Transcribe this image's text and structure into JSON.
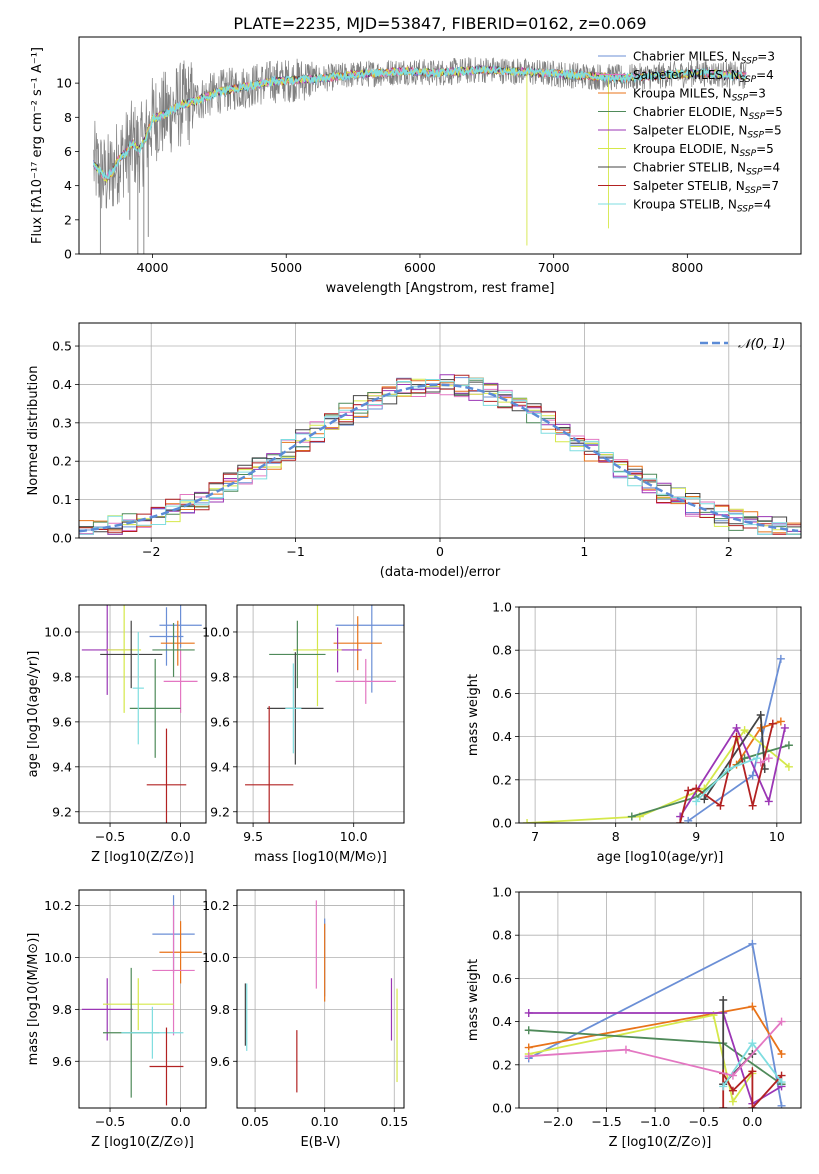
{
  "title": "PLATE=2235, MJD=53847, FIBERID=0162, z=0.069",
  "colors": [
    "#6b8fd6",
    "#e377c2",
    "#e8731a",
    "#4f8a5a",
    "#9b36b5",
    "#d5e84a",
    "#444444",
    "#b22222",
    "#7fdde0"
  ],
  "chart_data": [
    {
      "type": "line",
      "name": "spectrum",
      "ylabel": "Flux [fλ10⁻¹⁷ erg cm⁻² s⁻¹ A⁻¹]",
      "xlabel": "wavelength [Angstrom, rest frame]",
      "xlim": [
        3450,
        8850
      ],
      "ylim": [
        0,
        12.7
      ],
      "xticks": [
        4000,
        5000,
        6000,
        7000,
        8000
      ],
      "yticks": [
        0,
        2,
        4,
        6,
        8,
        10
      ],
      "continuum": {
        "x": [
          3560,
          3600,
          3650,
          3700,
          3750,
          3800,
          3850,
          3900,
          3950,
          4000,
          4100,
          4200,
          4300,
          4400,
          4500,
          4700,
          4900,
          5100,
          5300,
          5500,
          5700,
          5900,
          6100,
          6300,
          6500,
          6700,
          6900,
          7100,
          7300,
          7500,
          7700,
          7900,
          8100,
          8300,
          8450
        ],
        "y": [
          5.3,
          4.9,
          4.4,
          4.8,
          5.6,
          5.9,
          6.5,
          6.1,
          6.8,
          7.9,
          8.2,
          8.7,
          8.9,
          9.2,
          9.5,
          9.8,
          10.1,
          10.2,
          10.3,
          10.5,
          10.6,
          10.7,
          10.6,
          10.7,
          10.8,
          10.7,
          10.6,
          10.5,
          10.4,
          10.3,
          10.4,
          10.5,
          10.6,
          10.5,
          10.4
        ]
      },
      "legend": [
        "Chabrier MILES, N_SSP=3",
        "Salpeter MILES, N_SSP=4",
        "Kroupa MILES, N_SSP=3",
        "Chabrier ELODIE, N_SSP=5",
        "Salpeter ELODIE, N_SSP=5",
        "Kroupa ELODIE, N_SSP=5",
        "Chabrier STELIB, N_SSP=4",
        "Salpeter STELIB, N_SSP=7",
        "Kroupa STELIB, N_SSP=4"
      ]
    },
    {
      "type": "line",
      "name": "residual-histogram",
      "xlabel": "(data-model)/error",
      "ylabel": "Normed distribution",
      "xlim": [
        -2.5,
        2.5
      ],
      "ylim": [
        0,
        0.56
      ],
      "xticks": [
        -2,
        -1,
        0,
        1,
        2
      ],
      "yticks": [
        0.0,
        0.1,
        0.2,
        0.3,
        0.4,
        0.5
      ],
      "legend": "𝒩(0, 1)",
      "bin_width": 0.1,
      "bin_start": -2.5
    },
    {
      "type": "scatter",
      "name": "age-vs-Z",
      "xlabel": "Z [log10(Z/Z⊙)]",
      "ylabel": "age  [log10(age/yr)]",
      "xlim": [
        -0.72,
        0.18
      ],
      "ylim": [
        9.15,
        10.12
      ],
      "xticks": [
        -0.5,
        0.0
      ],
      "yticks": [
        9.2,
        9.4,
        9.6,
        9.8,
        10.0
      ],
      "points": [
        {
          "x": 0.0,
          "y": 10.03,
          "xe": 0.15,
          "ye": 0.1,
          "c": 0
        },
        {
          "x": -0.1,
          "y": 9.98,
          "xe": 0.12,
          "ye": 0.13,
          "c": 0
        },
        {
          "x": -0.02,
          "y": 9.95,
          "xe": 0.12,
          "ye": 0.1,
          "c": 2
        },
        {
          "x": 0.0,
          "y": 9.78,
          "xe": 0.12,
          "ye": 0.14,
          "c": 1
        },
        {
          "x": -0.05,
          "y": 9.92,
          "xe": 0.15,
          "ye": 0.12,
          "c": 3
        },
        {
          "x": -0.52,
          "y": 9.92,
          "xe": 0.18,
          "ye": 0.2,
          "c": 4
        },
        {
          "x": -0.4,
          "y": 9.92,
          "xe": 0.12,
          "ye": 0.28,
          "c": 5
        },
        {
          "x": -0.35,
          "y": 9.9,
          "xe": 0.22,
          "ye": 0.15,
          "c": 6
        },
        {
          "x": -0.18,
          "y": 9.66,
          "xe": 0.18,
          "ye": 0.22,
          "c": 3
        },
        {
          "x": -0.3,
          "y": 9.75,
          "xe": 0.04,
          "ye": 0.25,
          "c": 8
        },
        {
          "x": -0.1,
          "y": 9.32,
          "xe": 0.14,
          "ye": 0.25,
          "c": 7
        }
      ]
    },
    {
      "type": "scatter",
      "name": "age-vs-mass",
      "xlabel": "mass [log10(M/M⊙)]",
      "ylabel": "",
      "xlim": [
        9.42,
        10.25
      ],
      "ylim": [
        9.15,
        10.12
      ],
      "xticks": [
        9.5,
        10.0
      ],
      "yticks": [
        9.2,
        9.4,
        9.6,
        9.8,
        10.0
      ],
      "points": [
        {
          "x": 10.09,
          "y": 10.03,
          "xe": 0.18,
          "ye": 0.3,
          "c": 0
        },
        {
          "x": 10.02,
          "y": 9.95,
          "xe": 0.12,
          "ye": 0.12,
          "c": 2
        },
        {
          "x": 9.92,
          "y": 9.92,
          "xe": 0.12,
          "ye": 0.1,
          "c": 4
        },
        {
          "x": 9.82,
          "y": 9.92,
          "xe": 0.12,
          "ye": 0.25,
          "c": 5
        },
        {
          "x": 9.72,
          "y": 9.9,
          "xe": 0.14,
          "ye": 0.15,
          "c": 3
        },
        {
          "x": 9.71,
          "y": 9.66,
          "xe": 0.14,
          "ye": 0.25,
          "c": 6
        },
        {
          "x": 9.7,
          "y": 9.66,
          "xe": 0.04,
          "ye": 0.2,
          "c": 8
        },
        {
          "x": 10.06,
          "y": 9.78,
          "xe": 0.15,
          "ye": 0.1,
          "c": 1
        },
        {
          "x": 9.58,
          "y": 9.32,
          "xe": 0.12,
          "ye": 0.35,
          "c": 7
        }
      ]
    },
    {
      "type": "line",
      "name": "weight-vs-age",
      "xlabel": "age  [log10(age/yr)]",
      "ylabel": "mass weight",
      "xlim": [
        6.8,
        10.3
      ],
      "ylim": [
        0.0,
        1.0
      ],
      "xticks": [
        7,
        8,
        9,
        10
      ],
      "yticks": [
        0.0,
        0.2,
        0.4,
        0.6,
        0.8,
        1.0
      ],
      "series": [
        {
          "c": 0,
          "x": [
            8.9,
            9.7,
            10.05
          ],
          "y": [
            0.01,
            0.22,
            0.76
          ]
        },
        {
          "c": 2,
          "x": [
            9.5,
            9.8,
            10.05
          ],
          "y": [
            0.27,
            0.44,
            0.47
          ]
        },
        {
          "c": 5,
          "x": [
            6.9,
            8.3,
            9.1,
            9.6,
            10.15
          ],
          "y": [
            0.0,
            0.03,
            0.16,
            0.43,
            0.26
          ]
        },
        {
          "c": 3,
          "x": [
            8.2,
            9.0,
            9.6,
            10.15
          ],
          "y": [
            0.03,
            0.12,
            0.3,
            0.36
          ]
        },
        {
          "c": 4,
          "x": [
            8.8,
            9.5,
            9.9,
            10.1
          ],
          "y": [
            0.03,
            0.44,
            0.1,
            0.44
          ]
        },
        {
          "c": 6,
          "x": [
            9.1,
            9.8,
            9.85
          ],
          "y": [
            0.11,
            0.5,
            0.25
          ]
        },
        {
          "c": 7,
          "x": [
            8.8,
            8.9,
            9.0,
            9.3,
            9.5,
            9.7,
            9.95
          ],
          "y": [
            0.0,
            0.15,
            0.16,
            0.08,
            0.4,
            0.08,
            0.46
          ]
        },
        {
          "c": 8,
          "x": [
            9.0,
            9.4,
            9.75
          ],
          "y": [
            0.1,
            0.25,
            0.3
          ]
        },
        {
          "c": 1,
          "x": [
            9.8,
            9.9
          ],
          "y": [
            0.28,
            0.3
          ]
        }
      ]
    },
    {
      "type": "scatter",
      "name": "mass-vs-Z",
      "xlabel": "Z [log10(Z/Z⊙)]",
      "ylabel": "mass [log10(M/M⊙)]",
      "xlim": [
        -0.72,
        0.18
      ],
      "ylim": [
        9.42,
        10.26
      ],
      "xticks": [
        -0.5,
        0.0
      ],
      "yticks": [
        9.6,
        9.8,
        10.0,
        10.2
      ],
      "points": [
        {
          "x": -0.05,
          "y": 10.09,
          "xe": 0.15,
          "ye": 0.15,
          "c": 0
        },
        {
          "x": 0.0,
          "y": 10.02,
          "xe": 0.15,
          "ye": 0.12,
          "c": 2
        },
        {
          "x": -0.05,
          "y": 9.95,
          "xe": 0.15,
          "ye": 0.25,
          "c": 1
        },
        {
          "x": -0.52,
          "y": 9.8,
          "xe": 0.18,
          "ye": 0.12,
          "c": 4
        },
        {
          "x": -0.3,
          "y": 9.82,
          "xe": 0.25,
          "ye": 0.1,
          "c": 5
        },
        {
          "x": -0.35,
          "y": 9.71,
          "xe": 0.2,
          "ye": 0.25,
          "c": 3
        },
        {
          "x": -0.2,
          "y": 9.71,
          "xe": 0.22,
          "ye": 0.1,
          "c": 8
        },
        {
          "x": -0.1,
          "y": 9.58,
          "xe": 0.12,
          "ye": 0.15,
          "c": 7
        }
      ]
    },
    {
      "type": "scatter",
      "name": "mass-vs-EBV",
      "xlabel": "E(B-V)",
      "ylabel": "",
      "xlim": [
        0.037,
        0.157
      ],
      "ylim": [
        9.42,
        10.26
      ],
      "xticks": [
        0.05,
        0.1,
        0.15
      ],
      "yticks": [
        9.6,
        9.8,
        10.0,
        10.2
      ],
      "points": [
        {
          "x": 0.043,
          "y": 9.78,
          "xe": 0.0,
          "ye": 0.12,
          "c": 6
        },
        {
          "x": 0.044,
          "y": 9.77,
          "xe": 0.0,
          "ye": 0.13,
          "c": 8
        },
        {
          "x": 0.08,
          "y": 9.6,
          "xe": 0.0,
          "ye": 0.12,
          "c": 7
        },
        {
          "x": 0.094,
          "y": 10.05,
          "xe": 0.0,
          "ye": 0.17,
          "c": 1
        },
        {
          "x": 0.1,
          "y": 10.0,
          "xe": 0.0,
          "ye": 0.15,
          "c": 0
        },
        {
          "x": 0.1,
          "y": 9.98,
          "xe": 0.0,
          "ye": 0.15,
          "c": 2
        },
        {
          "x": 0.148,
          "y": 9.8,
          "xe": 0.0,
          "ye": 0.12,
          "c": 4
        },
        {
          "x": 0.152,
          "y": 9.7,
          "xe": 0.0,
          "ye": 0.18,
          "c": 5
        }
      ]
    },
    {
      "type": "line",
      "name": "weight-vs-Z",
      "xlabel": "Z [log10(Z/Z⊙)]",
      "ylabel": "mass weight",
      "xlim": [
        -2.4,
        0.5
      ],
      "ylim": [
        0.0,
        1.0
      ],
      "xticks": [
        -2.0,
        -1.5,
        -1.0,
        -0.5,
        0.0
      ],
      "yticks": [
        0.0,
        0.2,
        0.4,
        0.6,
        0.8,
        1.0
      ],
      "series": [
        {
          "c": 0,
          "x": [
            -2.3,
            0.0,
            0.3
          ],
          "y": [
            0.23,
            0.76,
            0.01
          ]
        },
        {
          "c": 2,
          "x": [
            -2.3,
            0.0,
            0.3
          ],
          "y": [
            0.28,
            0.47,
            0.25
          ]
        },
        {
          "c": 5,
          "x": [
            -2.3,
            -0.4,
            -0.2,
            0.0
          ],
          "y": [
            0.25,
            0.43,
            0.03,
            0.16
          ]
        },
        {
          "c": 3,
          "x": [
            -2.3,
            -0.3,
            0.3
          ],
          "y": [
            0.36,
            0.3,
            0.11
          ]
        },
        {
          "c": 4,
          "x": [
            -2.3,
            -0.3,
            0.0,
            0.3
          ],
          "y": [
            0.44,
            0.44,
            0.02,
            0.1
          ]
        },
        {
          "c": 6,
          "x": [
            -0.3,
            -0.3,
            0.0
          ],
          "y": [
            0.5,
            0.11,
            0.25
          ]
        },
        {
          "c": 7,
          "x": [
            -0.3,
            -0.3,
            -0.2,
            0.0,
            0.0,
            0.3
          ],
          "y": [
            0.0,
            0.16,
            0.08,
            0.17,
            0.0,
            0.15
          ]
        },
        {
          "c": 8,
          "x": [
            -0.3,
            0.0,
            0.3
          ],
          "y": [
            0.1,
            0.3,
            0.12
          ]
        },
        {
          "c": 1,
          "x": [
            -2.3,
            -1.3,
            -0.2,
            0.3
          ],
          "y": [
            0.24,
            0.27,
            0.15,
            0.4
          ]
        }
      ]
    }
  ]
}
